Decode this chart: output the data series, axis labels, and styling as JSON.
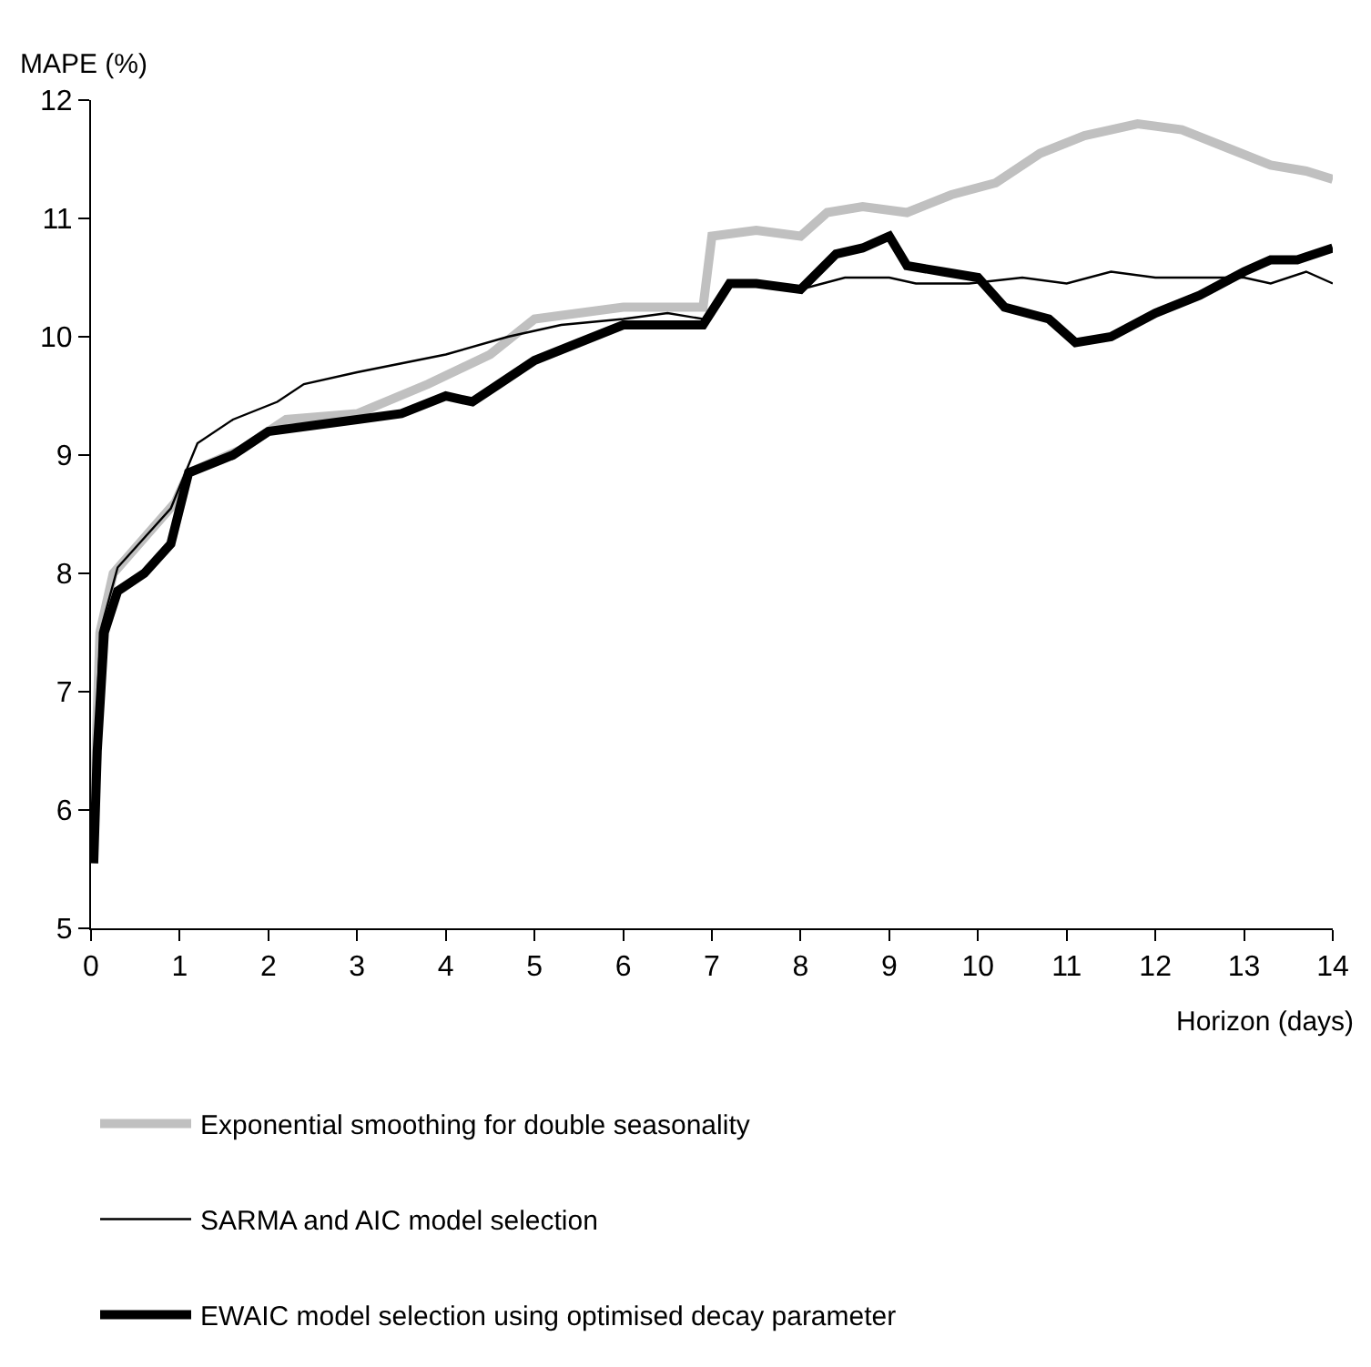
{
  "chart_data": {
    "type": "line",
    "xlabel": "Horizon (days)",
    "ylabel": "MAPE (%)",
    "xlim": [
      0,
      14
    ],
    "xticks": [
      0,
      1,
      2,
      3,
      4,
      5,
      6,
      7,
      8,
      9,
      10,
      11,
      12,
      13,
      14
    ],
    "ylim": [
      5,
      12
    ],
    "yticks": [
      5,
      6,
      7,
      8,
      9,
      10,
      11,
      12
    ],
    "legend": "bottom",
    "marker": "none",
    "series": [
      {
        "name": "Exponential smoothing for double seasonality",
        "color": "#c0c0c0",
        "x": [
          0.03,
          0.1,
          0.25,
          0.6,
          0.95,
          1.1,
          1.7,
          2.2,
          3.0,
          3.8,
          4.5,
          5.0,
          5.5,
          6.0,
          6.9,
          7.0,
          7.5,
          8.0,
          8.3,
          8.7,
          9.2,
          9.7,
          10.2,
          10.7,
          11.2,
          11.8,
          12.3,
          12.8,
          13.3,
          13.7,
          14.0
        ],
        "values": [
          5.9,
          7.5,
          8.0,
          8.3,
          8.6,
          8.85,
          9.05,
          9.3,
          9.35,
          9.6,
          9.85,
          10.15,
          10.2,
          10.25,
          10.25,
          10.85,
          10.9,
          10.85,
          11.05,
          11.1,
          11.05,
          11.2,
          11.3,
          11.55,
          11.7,
          11.8,
          11.75,
          11.6,
          11.45,
          11.4,
          11.33
        ]
      },
      {
        "name": "SARMA and AIC model selection",
        "color": "#000000",
        "x": [
          0.03,
          0.1,
          0.3,
          0.6,
          0.9,
          1.2,
          1.6,
          2.1,
          2.4,
          3.0,
          4.0,
          4.7,
          5.3,
          6.0,
          6.5,
          6.9,
          7.2,
          7.5,
          8.0,
          8.5,
          9.0,
          9.3,
          9.9,
          10.5,
          11.0,
          11.5,
          12.0,
          12.5,
          13.0,
          13.3,
          13.7,
          14.0
        ],
        "values": [
          5.9,
          7.5,
          8.05,
          8.3,
          8.55,
          9.1,
          9.3,
          9.45,
          9.6,
          9.7,
          9.85,
          10.0,
          10.1,
          10.15,
          10.2,
          10.15,
          10.45,
          10.45,
          10.4,
          10.5,
          10.5,
          10.45,
          10.45,
          10.5,
          10.45,
          10.55,
          10.5,
          10.5,
          10.5,
          10.45,
          10.55,
          10.45
        ]
      },
      {
        "name": "EWAIC model selection using optimised decay parameter",
        "color": "#000000",
        "x": [
          0.03,
          0.07,
          0.15,
          0.3,
          0.6,
          0.9,
          1.1,
          1.6,
          2.0,
          2.5,
          3.0,
          3.5,
          4.0,
          4.3,
          4.6,
          5.0,
          5.5,
          6.0,
          6.5,
          6.9,
          7.2,
          7.5,
          8.0,
          8.4,
          8.7,
          9.0,
          9.2,
          9.6,
          10.0,
          10.3,
          10.8,
          11.1,
          11.5,
          12.0,
          12.5,
          13.0,
          13.3,
          13.6,
          14.0
        ],
        "values": [
          5.55,
          6.5,
          7.5,
          7.85,
          8.0,
          8.25,
          8.85,
          9.0,
          9.2,
          9.25,
          9.3,
          9.35,
          9.5,
          9.45,
          9.6,
          9.8,
          9.95,
          10.1,
          10.1,
          10.1,
          10.45,
          10.45,
          10.4,
          10.7,
          10.75,
          10.85,
          10.6,
          10.55,
          10.5,
          10.25,
          10.15,
          9.95,
          10.0,
          10.2,
          10.35,
          10.55,
          10.65,
          10.65,
          10.75
        ]
      }
    ]
  }
}
